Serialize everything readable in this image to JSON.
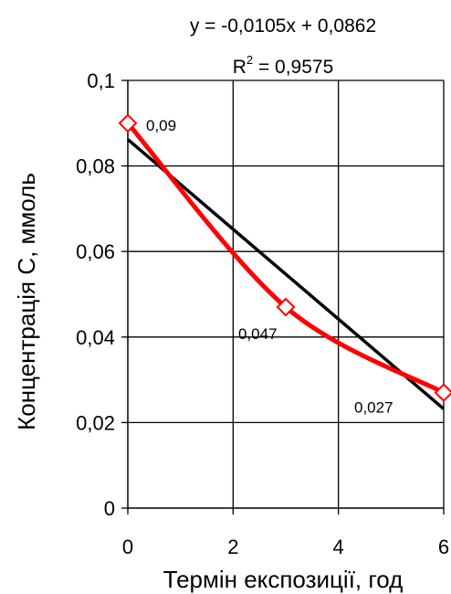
{
  "chart_data": {
    "type": "line",
    "xlabel": "Термін експозиції, год",
    "ylabel": "Концентрація С, ммоль",
    "xlim": [
      0,
      6
    ],
    "ylim": [
      0,
      0.1
    ],
    "x_ticks": [
      "0",
      "2",
      "4",
      "6"
    ],
    "y_ticks": [
      "0",
      "0,02",
      "0,04",
      "0,06",
      "0,08",
      "0,1"
    ],
    "grid": true,
    "series": [
      {
        "color": "#ff0000",
        "marker": "diamond-open",
        "smooth": true,
        "x": [
          0,
          3,
          6
        ],
        "y": [
          0.09,
          0.047,
          0.027
        ],
        "labels": [
          "0,09",
          "0,047",
          "0,027"
        ]
      }
    ],
    "trendline": {
      "type": "linear",
      "color": "#000000",
      "slope": -0.0105,
      "intercept": 0.0862,
      "equation": "y = -0,0105x + 0,0862",
      "r2_prefix": "R",
      "r2_exp": "2",
      "r2_value": " = 0,9575"
    }
  }
}
